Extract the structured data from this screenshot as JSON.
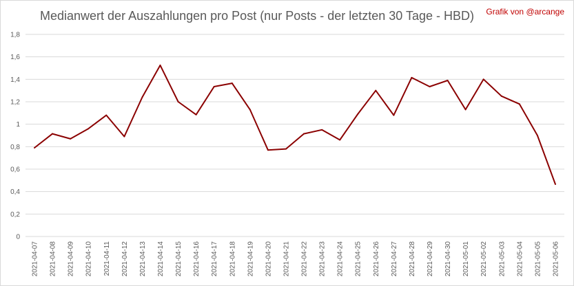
{
  "chart_data": {
    "type": "line",
    "title": "Medianwert der Auszahlungen pro Post (nur Posts - der letzten 30 Tage - HBD)",
    "credit": "Grafik von @arcange",
    "xlabel": "",
    "ylabel": "",
    "ylim": [
      0,
      1.8
    ],
    "yticks": [
      {
        "value": 0,
        "label": "0"
      },
      {
        "value": 0.2,
        "label": "0,2"
      },
      {
        "value": 0.4,
        "label": "0,4"
      },
      {
        "value": 0.6,
        "label": "0,6"
      },
      {
        "value": 0.8,
        "label": "0,8"
      },
      {
        "value": 1.0,
        "label": "1"
      },
      {
        "value": 1.2,
        "label": "1,2"
      },
      {
        "value": 1.4,
        "label": "1,4"
      },
      {
        "value": 1.6,
        "label": "1,6"
      },
      {
        "value": 1.8,
        "label": "1,8"
      }
    ],
    "grid": true,
    "legend": "none",
    "line_color": "#8b0000",
    "grid_color": "#d9d9d9",
    "categories": [
      "2021-04-07",
      "2021-04-08",
      "2021-04-09",
      "2021-04-10",
      "2021-04-11",
      "2021-04-12",
      "2021-04-13",
      "2021-04-14",
      "2021-04-15",
      "2021-04-16",
      "2021-04-17",
      "2021-04-18",
      "2021-04-19",
      "2021-04-20",
      "2021-04-21",
      "2021-04-22",
      "2021-04-23",
      "2021-04-24",
      "2021-04-25",
      "2021-04-26",
      "2021-04-27",
      "2021-04-28",
      "2021-04-29",
      "2021-04-30",
      "2021-05-01",
      "2021-05-02",
      "2021-05-03",
      "2021-05-04",
      "2021-05-05",
      "2021-05-06"
    ],
    "series": [
      {
        "values": [
          0.79,
          0.915,
          0.87,
          0.96,
          1.08,
          0.89,
          1.24,
          1.525,
          1.2,
          1.085,
          1.335,
          1.365,
          1.13,
          0.77,
          0.78,
          0.915,
          0.95,
          0.86,
          1.09,
          1.3,
          1.08,
          1.415,
          1.335,
          1.39,
          1.13,
          1.4,
          1.25,
          1.18,
          0.9,
          0.465
        ]
      }
    ]
  }
}
